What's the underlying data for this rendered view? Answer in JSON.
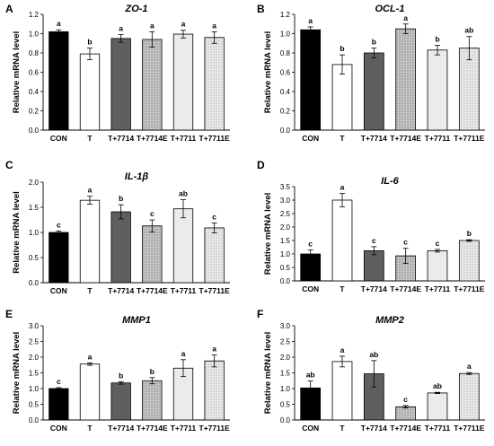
{
  "figure": {
    "colors": {
      "CON": "#000000",
      "T": "#ffffff",
      "T+7714": "#5f5f5f",
      "T+7714E": "#bdbdbd",
      "T+7711": "#ebebeb",
      "T+7711E": "#ebebeb"
    },
    "hatched": [
      "T+7714E",
      "T+7711E"
    ]
  },
  "chart_data": [
    {
      "panel": "A",
      "title": "ZO-1",
      "type": "bar",
      "ylabel": "Relative mRNA level",
      "ylim": [
        0,
        1.2
      ],
      "yticks": [
        "0.0",
        "0.2",
        "0.4",
        "0.6",
        "0.8",
        "1.0",
        "1.2"
      ],
      "categories": [
        "CON",
        "T",
        "T+7714",
        "T+7714E",
        "T+7711",
        "T+7711E"
      ],
      "values": [
        1.02,
        0.79,
        0.95,
        0.94,
        0.995,
        0.96
      ],
      "errors": [
        0.02,
        0.06,
        0.04,
        0.08,
        0.04,
        0.06
      ],
      "labels": [
        "a",
        "b",
        "a",
        "a",
        "a",
        "a"
      ]
    },
    {
      "panel": "B",
      "title": "OCL-1",
      "type": "bar",
      "ylabel": "Relative mRNA level",
      "ylim": [
        0,
        1.2
      ],
      "yticks": [
        "0.0",
        "0.2",
        "0.4",
        "0.6",
        "0.8",
        "1.0",
        "1.2"
      ],
      "categories": [
        "CON",
        "T",
        "T+7714",
        "T+7714E",
        "T+7711",
        "T+7711E"
      ],
      "values": [
        1.04,
        0.68,
        0.8,
        1.05,
        0.83,
        0.85
      ],
      "errors": [
        0.03,
        0.1,
        0.05,
        0.05,
        0.05,
        0.12
      ],
      "labels": [
        "a",
        "b",
        "b",
        "a",
        "b",
        "ab"
      ]
    },
    {
      "panel": "C",
      "title": "IL-1β",
      "type": "bar",
      "ylabel": "Relative mRNA level",
      "ylim": [
        0,
        2.0
      ],
      "yticks": [
        "0.0",
        "0.5",
        "1.0",
        "1.5",
        "2.0"
      ],
      "categories": [
        "CON",
        "T",
        "T+7714",
        "T+7714E",
        "T+7711",
        "T+7711E"
      ],
      "values": [
        1.0,
        1.64,
        1.41,
        1.13,
        1.47,
        1.09
      ],
      "errors": [
        0.03,
        0.08,
        0.14,
        0.12,
        0.18,
        0.1
      ],
      "labels": [
        "c",
        "a",
        "b",
        "c",
        "ab",
        "c"
      ]
    },
    {
      "panel": "D",
      "title": "IL-6",
      "type": "bar",
      "ylabel": "Relative mRNA level",
      "ylim": [
        0,
        3.5
      ],
      "yticks": [
        "0.0",
        "0.5",
        "1.0",
        "1.5",
        "2.0",
        "2.5",
        "3.0",
        "3.5"
      ],
      "categories": [
        "CON",
        "T",
        "T+7714",
        "T+7714E",
        "T+7711",
        "T+7711E"
      ],
      "values": [
        1.0,
        3.0,
        1.12,
        0.93,
        1.12,
        1.5
      ],
      "errors": [
        0.15,
        0.25,
        0.15,
        0.28,
        0.05,
        0.03
      ],
      "labels": [
        "c",
        "a",
        "c",
        "c",
        "c",
        "b"
      ]
    },
    {
      "panel": "E",
      "title": "MMP1",
      "type": "bar",
      "ylabel": "Relative mRNA level",
      "ylim": [
        0,
        3.0
      ],
      "yticks": [
        "0.0",
        "0.5",
        "1.0",
        "1.5",
        "2.0",
        "2.5",
        "3.0"
      ],
      "categories": [
        "CON",
        "T",
        "T+7714",
        "T+7714E",
        "T+7711",
        "T+7711E"
      ],
      "values": [
        1.0,
        1.78,
        1.18,
        1.25,
        1.65,
        1.88
      ],
      "errors": [
        0.03,
        0.04,
        0.04,
        0.1,
        0.27,
        0.19
      ],
      "labels": [
        "c",
        "a",
        "b",
        "b",
        "a",
        "a"
      ]
    },
    {
      "panel": "F",
      "title": "MMP2",
      "type": "bar",
      "ylabel": "Relative mRNA level",
      "ylim": [
        0,
        3.0
      ],
      "yticks": [
        "0.0",
        "0.5",
        "1.0",
        "1.5",
        "2.0",
        "2.5",
        "3.0"
      ],
      "categories": [
        "CON",
        "T",
        "T+7714",
        "T+7714E",
        "T+7711",
        "T+7711E"
      ],
      "values": [
        1.02,
        1.86,
        1.47,
        0.42,
        0.86,
        1.48
      ],
      "errors": [
        0.22,
        0.17,
        0.42,
        0.04,
        0.02,
        0.03
      ],
      "labels": [
        "ab",
        "a",
        "ab",
        "c",
        "ab",
        "a"
      ]
    }
  ]
}
